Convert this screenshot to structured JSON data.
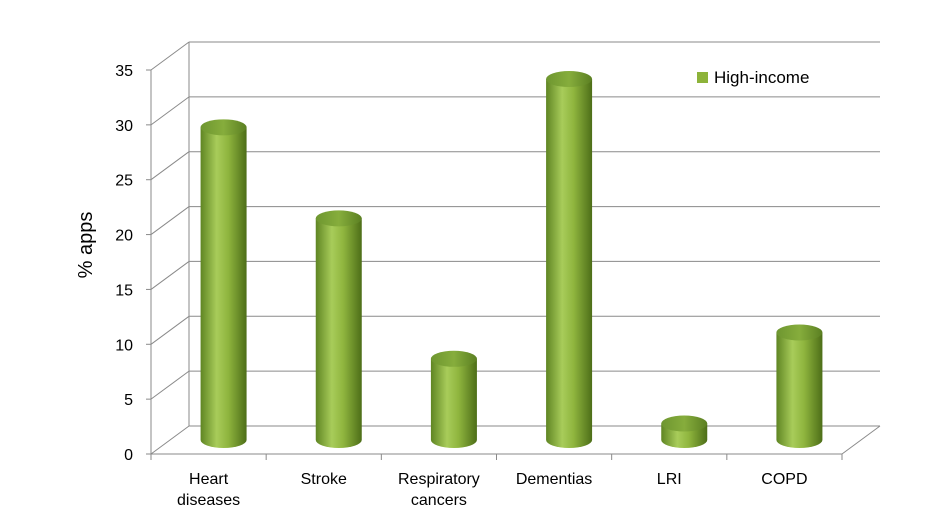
{
  "chart_data": {
    "type": "bar",
    "title": "",
    "xlabel": "",
    "ylabel": "% apps",
    "categories": [
      [
        "Heart",
        "diseases"
      ],
      [
        "Stroke"
      ],
      [
        "Respiratory",
        "cancers"
      ],
      [
        "Dementias"
      ],
      [
        "LRI"
      ],
      [
        "COPD"
      ]
    ],
    "series": [
      {
        "name": "High-income",
        "color": "#8DB33A",
        "values": [
          28.5,
          20.2,
          7.4,
          32.9,
          1.5,
          9.8
        ]
      }
    ],
    "ylim": [
      0,
      35
    ],
    "yticks": [
      0,
      5,
      10,
      15,
      20,
      25,
      30,
      35
    ],
    "grid": true,
    "legend_position": "top-right",
    "style": "3d-cylinder"
  }
}
